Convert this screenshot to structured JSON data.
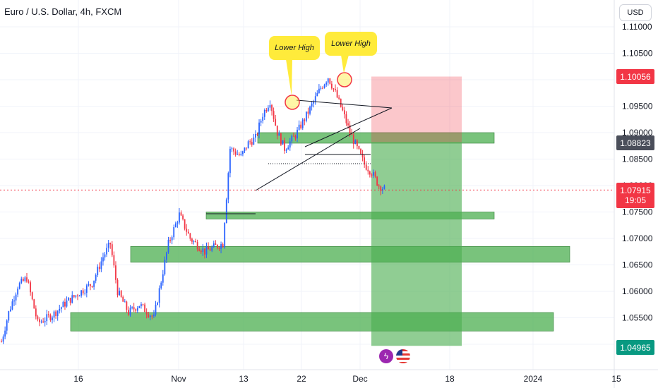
{
  "header": {
    "title": "Euro / U.S. Dollar, 4h, FXCM"
  },
  "currency_button": "USD",
  "annotations": {
    "lower_high_1": "Lower High",
    "lower_high_2": "Lower High"
  },
  "price_tags": {
    "high": {
      "label": "1.10056",
      "color": "#f23645"
    },
    "zone": {
      "label": "1.08823",
      "color": "#4a4e5a"
    },
    "current": {
      "label": "1.07915",
      "timer": "19:05",
      "color": "#f23645"
    },
    "target": {
      "label": "1.04965",
      "color": "#089981"
    }
  },
  "chart_data": {
    "type": "candlestick",
    "symbol": "EURUSD",
    "timeframe": "4h",
    "ylim": [
      1.0475,
      1.1125
    ],
    "y_ticks": [
      "1.11000",
      "1.10500",
      "1.10000",
      "1.09500",
      "1.09000",
      "1.08500",
      "1.08000",
      "1.07500",
      "1.07000",
      "1.06500",
      "1.06000",
      "1.05500",
      "1.05000"
    ],
    "x_ticks": [
      "16",
      "Nov",
      "13",
      "22",
      "Dec",
      "18",
      "2024",
      "15"
    ],
    "path": [
      [
        1.0505,
        0
      ],
      [
        1.056,
        4
      ],
      [
        1.061,
        9
      ],
      [
        1.0625,
        14
      ],
      [
        1.054,
        20
      ],
      [
        1.0555,
        28
      ],
      [
        1.058,
        36
      ],
      [
        1.06,
        44
      ],
      [
        1.0615,
        50
      ],
      [
        1.0665,
        56
      ],
      [
        1.069,
        60
      ],
      [
        1.06,
        64
      ],
      [
        1.056,
        70
      ],
      [
        1.0575,
        76
      ],
      [
        1.055,
        84
      ],
      [
        1.062,
        88
      ],
      [
        1.069,
        92
      ],
      [
        1.0745,
        98
      ],
      [
        1.07,
        104
      ],
      [
        1.0675,
        112
      ],
      [
        1.0685,
        118
      ],
      [
        1.069,
        122
      ],
      [
        1.087,
        126
      ],
      [
        1.0855,
        132
      ],
      [
        1.088,
        136
      ],
      [
        1.089,
        140
      ],
      [
        1.0935,
        144
      ],
      [
        1.096,
        148
      ],
      [
        1.09,
        152
      ],
      [
        1.087,
        156
      ],
      [
        1.0895,
        162
      ],
      [
        1.092,
        166
      ],
      [
        1.0945,
        170
      ],
      [
        1.0985,
        176
      ],
      [
        1.1005,
        180
      ],
      [
        1.0975,
        184
      ],
      [
        1.094,
        188
      ],
      [
        1.09,
        192
      ],
      [
        1.087,
        196
      ],
      [
        1.084,
        200
      ],
      [
        1.0825,
        204
      ],
      [
        1.08,
        208
      ],
      [
        1.0792,
        212
      ]
    ],
    "zones": [
      {
        "price_low": 1.088,
        "price_high": 1.09,
        "x_start": 1.0,
        "x_end": 2.75
      },
      {
        "price_low": 1.074,
        "price_high": 1.075,
        "x_start": 3.0,
        "x_end": 4.4
      },
      {
        "price_low": 1.0655,
        "price_high": 1.0685,
        "x_start": 2.1,
        "x_end": 6.1
      },
      {
        "price_low": 1.0525,
        "price_high": 1.056,
        "x_start": 0.0,
        "x_end": 6.2
      }
    ],
    "position": {
      "type": "short",
      "entry": 1.0882,
      "stop": 1.1006,
      "target": 1.0497
    },
    "current_price": 1.07915
  }
}
